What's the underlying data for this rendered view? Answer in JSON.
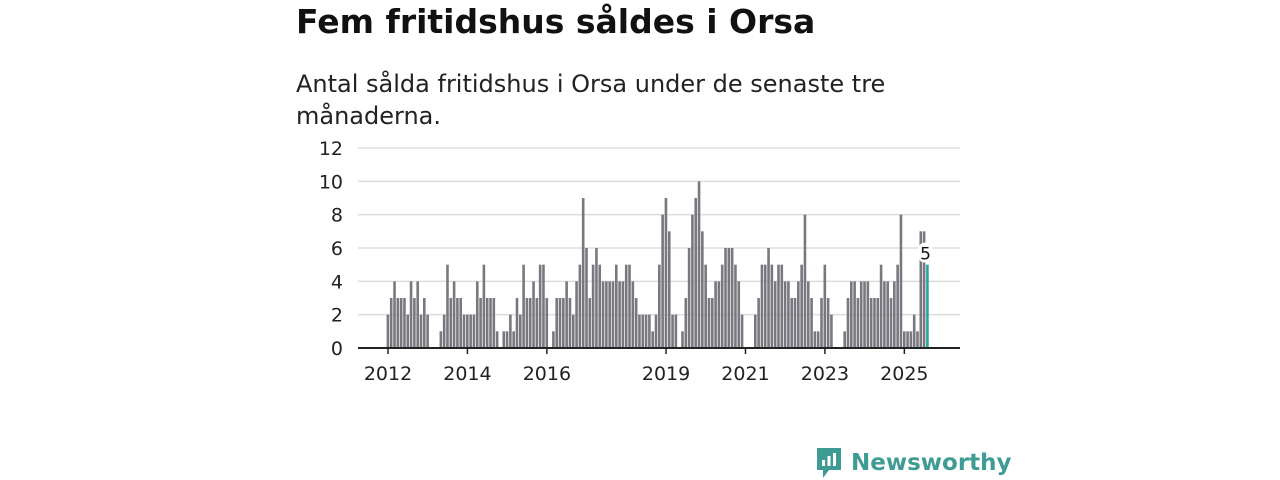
{
  "title": "Fem fritidshus såldes i Orsa",
  "subtitle": "Antal sålda fritidshus i Orsa under de senaste tre månaderna.",
  "brand": "Newsworthy",
  "colors": {
    "bar": "#78787f",
    "highlight": "#2aa39b",
    "grid": "#dddddd",
    "brand": "#3e9c94"
  },
  "chart_data": {
    "type": "bar",
    "title": "Fem fritidshus såldes i Orsa",
    "xlabel": "",
    "ylabel": "",
    "start": "2012-01",
    "interval": "month",
    "ylim": [
      0,
      12
    ],
    "yticks": [
      "0",
      "2",
      "4",
      "6",
      "8",
      "10",
      "12"
    ],
    "xticks": [
      "2012",
      "2014",
      "2016",
      "2019",
      "2021",
      "2023",
      "2025"
    ],
    "grid": true,
    "highlight_label": "5",
    "values": [
      2,
      3,
      4,
      3,
      3,
      3,
      2,
      4,
      3,
      4,
      2,
      3,
      2,
      0,
      0,
      0,
      1,
      2,
      5,
      3,
      4,
      3,
      3,
      2,
      2,
      2,
      2,
      4,
      3,
      5,
      3,
      3,
      3,
      1,
      0,
      1,
      1,
      2,
      1,
      3,
      2,
      5,
      3,
      3,
      4,
      3,
      5,
      5,
      3,
      0,
      1,
      3,
      3,
      3,
      4,
      3,
      2,
      4,
      5,
      9,
      6,
      3,
      5,
      6,
      5,
      4,
      4,
      4,
      4,
      5,
      4,
      4,
      5,
      5,
      4,
      3,
      2,
      2,
      2,
      2,
      1,
      2,
      5,
      8,
      9,
      7,
      2,
      2,
      0,
      1,
      3,
      6,
      8,
      9,
      10,
      7,
      5,
      3,
      3,
      4,
      4,
      5,
      6,
      6,
      6,
      5,
      4,
      2,
      0,
      0,
      0,
      2,
      3,
      5,
      5,
      6,
      5,
      4,
      5,
      5,
      4,
      4,
      3,
      3,
      4,
      5,
      8,
      4,
      3,
      1,
      1,
      3,
      5,
      3,
      2,
      0,
      0,
      0,
      1,
      3,
      4,
      4,
      3,
      4,
      4,
      4,
      3,
      3,
      3,
      5,
      4,
      4,
      3,
      4,
      5,
      8,
      1,
      1,
      1,
      2,
      1,
      7,
      7,
      5
    ]
  }
}
